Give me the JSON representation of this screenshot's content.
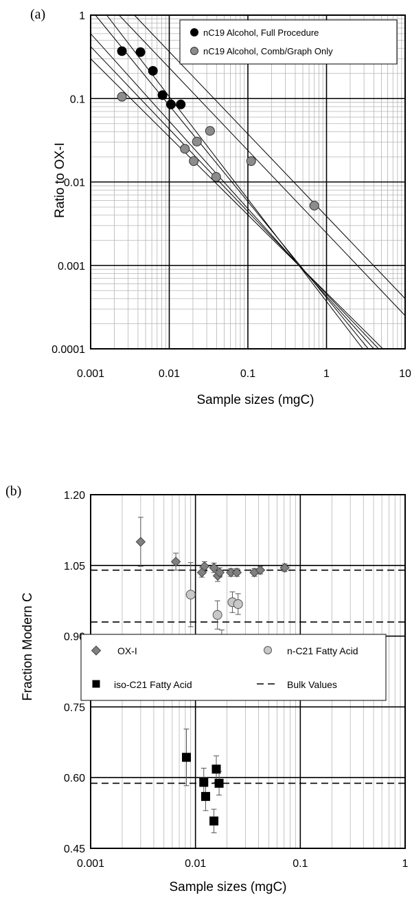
{
  "chart_data": [
    {
      "panel_label": "(a)",
      "type": "scatter",
      "xscale": "log",
      "yscale": "log",
      "xlim": [
        0.001,
        10
      ],
      "ylim": [
        0.0001,
        1
      ],
      "xlabel": "Sample sizes (mgC)",
      "ylabel": "Ratio to OX-I",
      "xticks": [
        "0.001",
        "0.01",
        "0.1",
        "1",
        "10"
      ],
      "yticks": [
        "0.0001",
        "0.001",
        "0.01",
        "0.1",
        "1"
      ],
      "grid": "major and minor",
      "legend_position": "top-right",
      "series": [
        {
          "name": "nC19 Alcohol, Full Procedure",
          "color": "#000000",
          "marker": "circle",
          "x": [
            0.0025,
            0.0043,
            0.0062,
            0.0082,
            0.0105,
            0.014
          ],
          "y": [
            0.37,
            0.36,
            0.215,
            0.11,
            0.085,
            0.085
          ]
        },
        {
          "name": "nC19 Alcohol, Comb/Graph Only",
          "color": "#8c8c8c",
          "marker": "circle",
          "x": [
            0.0025,
            0.0158,
            0.0205,
            0.0225,
            0.033,
            0.0395,
            0.11,
            0.7
          ],
          "y": [
            0.105,
            0.025,
            0.0178,
            0.0305,
            0.041,
            0.0115,
            0.0178,
            0.0052
          ]
        }
      ],
      "reference_lines": [
        {
          "x0": 0.0016,
          "y0": 1,
          "x1": 2.9,
          "y1": 0.0001
        },
        {
          "x0": 0.00115,
          "y0": 1,
          "x1": 3.4,
          "y1": 0.0001
        },
        {
          "x0": 0.001,
          "y0": 0.6,
          "x1": 4.0,
          "y1": 0.0001
        },
        {
          "x0": 0.001,
          "y0": 0.42,
          "x1": 4.6,
          "y1": 0.0001
        },
        {
          "x0": 0.001,
          "y0": 0.3,
          "x1": 5.2,
          "y1": 0.0001
        },
        {
          "x0": 0.0023,
          "y0": 1,
          "x1": 10,
          "y1": 0.00025
        },
        {
          "x0": 0.0036,
          "y0": 1,
          "x1": 10,
          "y1": 0.0004
        }
      ]
    },
    {
      "panel_label": "(b)",
      "type": "scatter",
      "xscale": "log",
      "yscale": "linear",
      "xlim": [
        0.001,
        1
      ],
      "ylim": [
        0.45,
        1.2
      ],
      "xlabel": "Sample sizes (mgC)",
      "ylabel": "Fraction Modern C",
      "xticks": [
        "0.001",
        "0.01",
        "0.1",
        "1"
      ],
      "yticks": [
        "0.45",
        "0.60",
        "0.75",
        "0.90",
        "1.05",
        "1.20"
      ],
      "grid": "major and minor x, major y",
      "legend_position": "center",
      "series": [
        {
          "name": "OX-I",
          "color": "#808080",
          "marker": "diamond",
          "x": [
            0.003,
            0.0065,
            0.0115,
            0.0122,
            0.015,
            0.0163,
            0.017,
            0.0218,
            0.0248,
            0.0365,
            0.0415,
            0.071
          ],
          "y": [
            1.1,
            1.058,
            1.035,
            1.048,
            1.045,
            1.028,
            1.035,
            1.035,
            1.035,
            1.035,
            1.04,
            1.045
          ],
          "err": [
            0.052,
            0.018,
            0.01,
            0.01,
            0.01,
            0.012,
            0.01,
            0.008,
            0.008,
            0.008,
            0.008,
            0.008
          ]
        },
        {
          "name": "n-C21 Fatty Acid",
          "color": "#c8c8c8",
          "marker": "circle",
          "x": [
            0.009,
            0.0162,
            0.0178,
            0.018,
            0.0225,
            0.0255
          ],
          "y": [
            0.988,
            0.945,
            0.893,
            0.868,
            0.972,
            0.968
          ],
          "err": [
            0.068,
            0.03,
            0.02,
            0.02,
            0.022,
            0.022
          ]
        },
        {
          "name": "iso-C21 Fatty Acid",
          "color": "#000000",
          "marker": "square",
          "x": [
            0.0082,
            0.012,
            0.0125,
            0.015,
            0.0158,
            0.0168
          ],
          "y": [
            0.643,
            0.59,
            0.56,
            0.508,
            0.618,
            0.588
          ],
          "err": [
            0.06,
            0.03,
            0.03,
            0.025,
            0.028,
            0.025
          ]
        },
        {
          "name": "Bulk Values",
          "color": "#000000",
          "marker": "dashed-line",
          "y": [
            1.04,
            0.93,
            0.588
          ]
        }
      ]
    }
  ]
}
